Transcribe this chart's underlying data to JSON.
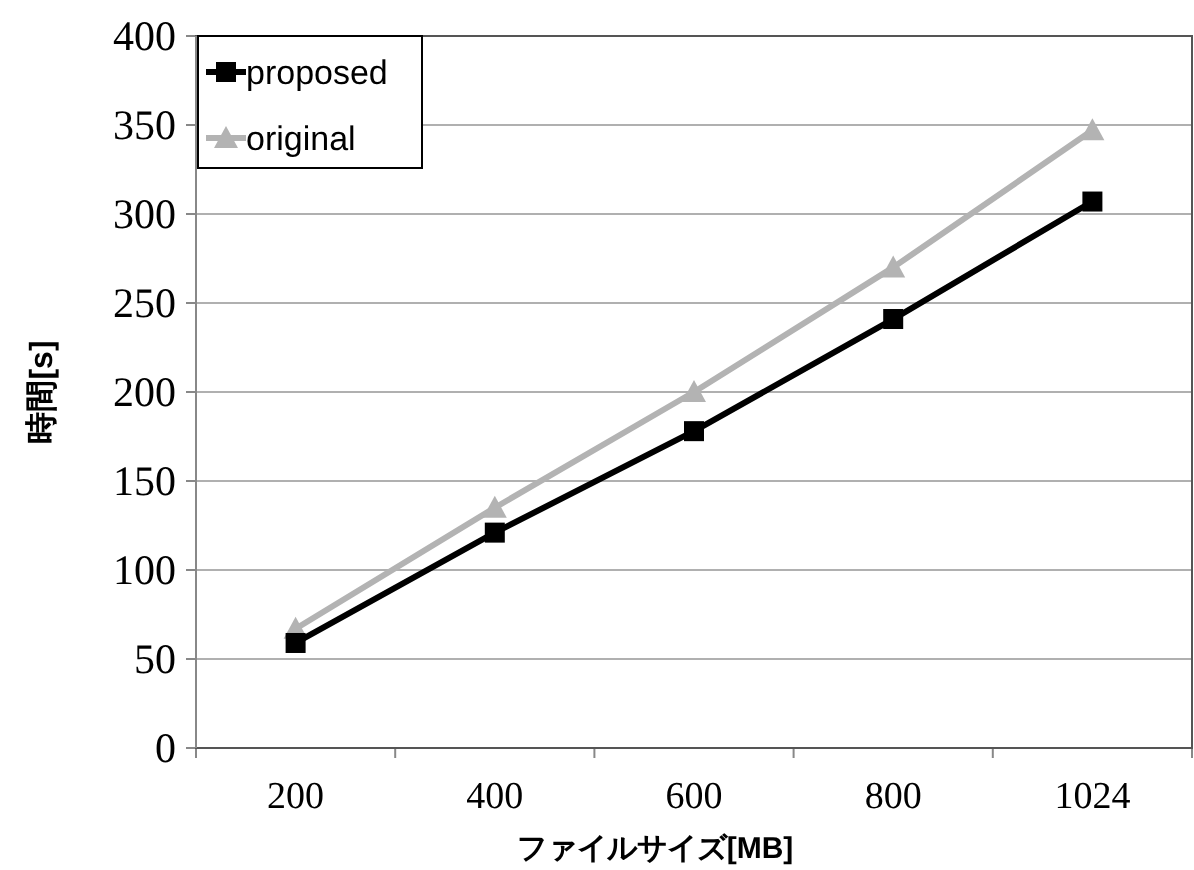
{
  "chart_data": {
    "type": "line",
    "xlabel": "ファイルサイズ[MB]",
    "ylabel": "時間[s]",
    "categories": [
      "200",
      "400",
      "600",
      "800",
      "1024"
    ],
    "series": [
      {
        "name": "proposed",
        "color": "#000000",
        "marker": "square",
        "values": [
          59,
          121,
          178,
          241,
          307
        ]
      },
      {
        "name": "original",
        "color": "#b3b3b3",
        "marker": "triangle",
        "values": [
          67,
          135,
          200,
          270,
          347
        ]
      }
    ],
    "ylim": [
      0,
      400
    ],
    "yticks": [
      0,
      50,
      100,
      150,
      200,
      250,
      300,
      350,
      400
    ],
    "grid": "y",
    "legend": "top left",
    "line_style": "solid"
  }
}
